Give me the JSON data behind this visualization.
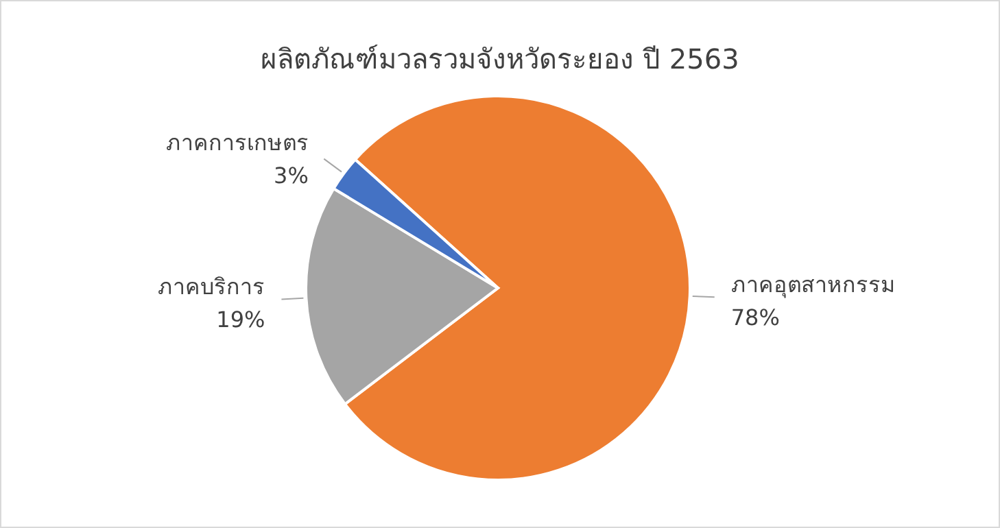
{
  "chart_data": {
    "type": "pie",
    "title": "ผลิตภัณฑ์มวลรวมจังหวัดระยอง ปี 2563",
    "categories": [
      "ภาคอุตสาหกรรม",
      "ภาคบริการ",
      "ภาคการเกษตร"
    ],
    "values": [
      78,
      19,
      3
    ],
    "colors": [
      "#ed7d31",
      "#a5a5a5",
      "#4472c4"
    ],
    "value_labels": [
      "78%",
      "19%",
      "3%"
    ]
  }
}
